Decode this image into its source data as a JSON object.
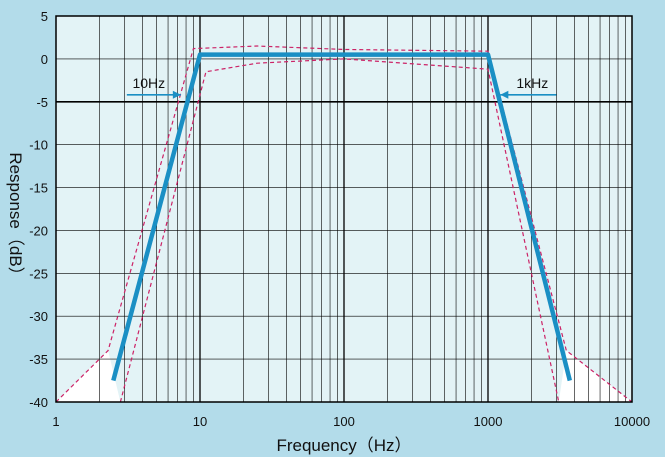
{
  "chart_data": {
    "type": "line",
    "xlabel": "Frequency（Hz）",
    "ylabel": "Response（dB）",
    "x_scale": "log",
    "xlim": [
      1,
      10000
    ],
    "ylim": [
      -40,
      5
    ],
    "x_ticks": [
      "1",
      "10",
      "100",
      "1000",
      "10000"
    ],
    "y_ticks": [
      "5",
      "0",
      "-5",
      "-10",
      "-15",
      "-20",
      "-25",
      "-30",
      "-35",
      "-40"
    ],
    "grid": true,
    "reference_line_db": -5,
    "series": [
      {
        "role": "nominal",
        "color": "#1a8fc4",
        "style": "solid",
        "points": [
          [
            2.5,
            -37.5
          ],
          [
            10,
            0.5
          ],
          [
            1000,
            0.5
          ],
          [
            3700,
            -37.5
          ]
        ]
      },
      {
        "role": "upper-tolerance",
        "color": "#cc2266",
        "style": "dashed",
        "points": [
          [
            1,
            -40
          ],
          [
            2.3,
            -34
          ],
          [
            9,
            1.2
          ],
          [
            25,
            1.5
          ],
          [
            100,
            1.1
          ],
          [
            1000,
            0.9
          ],
          [
            3500,
            -34
          ],
          [
            10000,
            -40
          ]
        ]
      },
      {
        "role": "lower-tolerance",
        "color": "#cc2266",
        "style": "dashed",
        "points": [
          [
            2.8,
            -40
          ],
          [
            11,
            -1.5
          ],
          [
            25,
            -0.5
          ],
          [
            100,
            0.0
          ],
          [
            1000,
            -1.2
          ],
          [
            3100,
            -40
          ]
        ]
      }
    ],
    "annotations": [
      {
        "text": "10Hz",
        "x": 7.6,
        "y": -5,
        "arrow": "right"
      },
      {
        "text": "1kHz",
        "x": 1180,
        "y": -5,
        "arrow": "left"
      }
    ]
  },
  "colors": {
    "page_background": "#b3dcea",
    "plot_background": "#e3f3f6",
    "grid": "#000000",
    "corner_fill": "#ffffff"
  }
}
